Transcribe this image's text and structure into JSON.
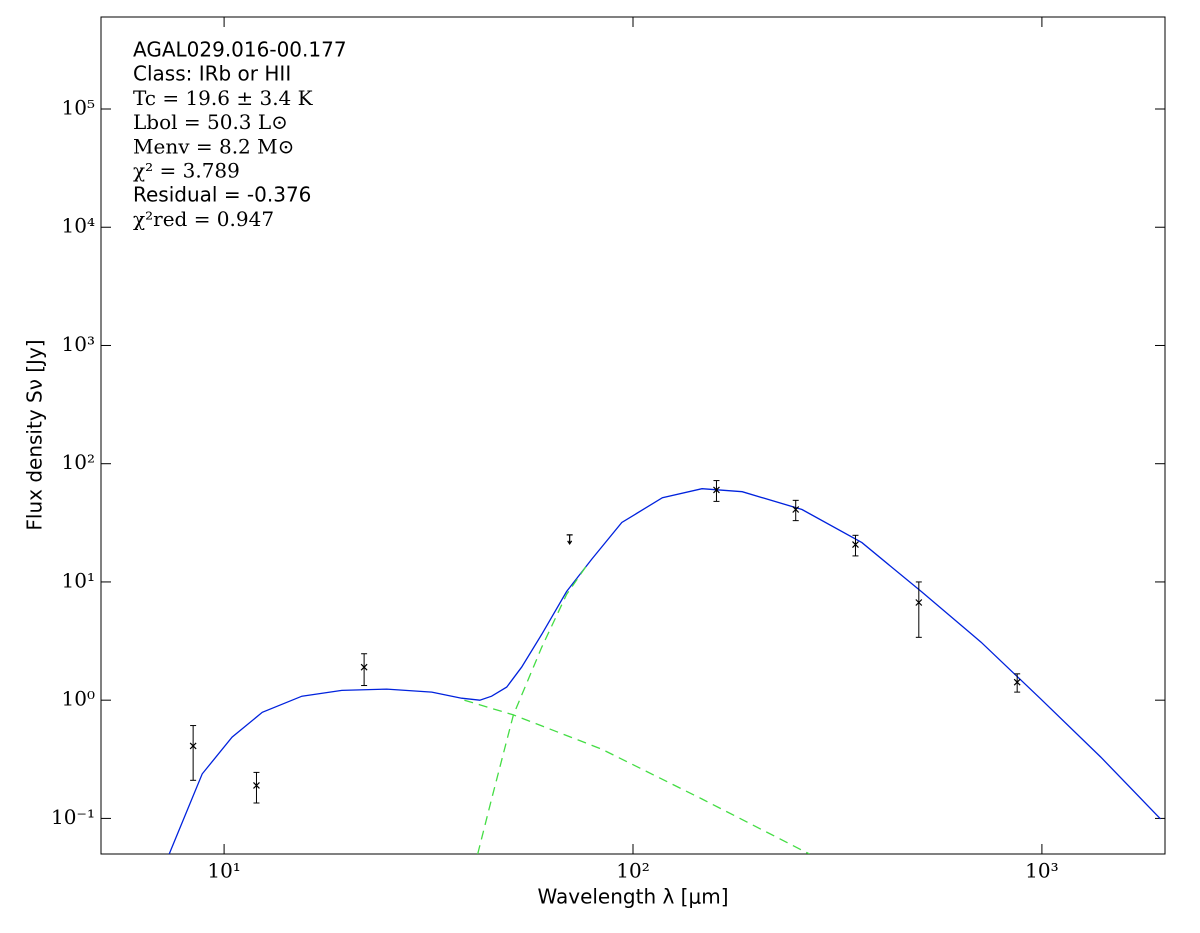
{
  "chart_data": {
    "type": "scatter",
    "x_label": "Wavelength λ [μm]",
    "y_label": "Flux density Sν [Jy]",
    "log_x": true,
    "log_y": true,
    "xlim": [
      5,
      2000
    ],
    "ylim": [
      0.05,
      600000
    ],
    "xticks": [
      {
        "value": 10,
        "label": "10¹"
      },
      {
        "value": 100,
        "label": "10²"
      },
      {
        "value": 1000,
        "label": "10³"
      }
    ],
    "yticks": [
      {
        "value": 0.1,
        "label": "10⁻¹"
      },
      {
        "value": 1,
        "label": "10⁰"
      },
      {
        "value": 10,
        "label": "10¹"
      },
      {
        "value": 100,
        "label": "10²"
      },
      {
        "value": 1000,
        "label": "10³"
      },
      {
        "value": 10000,
        "label": "10⁴"
      },
      {
        "value": 100000,
        "label": "10⁵"
      }
    ],
    "annotations": [
      {
        "text": "AGAL029.016-00.177",
        "math": false
      },
      {
        "text": "Class: IRb or HII",
        "math": false
      },
      {
        "text": "Tc = 19.6 ± 3.4 K",
        "math": true
      },
      {
        "text": "Lbol = 50.3 L⊙",
        "math": true
      },
      {
        "text": "Menv = 8.2 M⊙",
        "math": true
      },
      {
        "text": "χ² = 3.789",
        "math": true
      },
      {
        "text": "Residual = -0.376",
        "math": false
      },
      {
        "text": "χ²red = 0.947",
        "math": true
      }
    ],
    "points": {
      "color": "#000000",
      "x": [
        8.4,
        12,
        22,
        160,
        250,
        350,
        500,
        870
      ],
      "values": [
        0.41,
        0.19,
        1.9,
        60,
        41,
        20.7,
        6.7,
        1.42
      ],
      "errors": [
        0.2,
        0.055,
        0.57,
        12,
        8,
        4.1,
        3.3,
        0.25
      ]
    },
    "upper_limits": {
      "color": "#000000",
      "x": [
        70
      ],
      "values": [
        25
      ]
    },
    "curves": [
      {
        "color": "#0022dd",
        "dashed": false,
        "x": [
          7.34,
          8.84,
          10.46,
          12.4,
          15.5,
          19.4,
          25,
          32.2,
          38.1,
          42.2,
          45.1,
          49.1,
          53.4,
          59.8,
          68.8,
          79.2,
          93.9,
          118,
          147.5,
          185,
          259,
          363,
          507,
          710,
          995,
          1393,
          1950
        ],
        "values": [
          0.05,
          0.238,
          0.487,
          0.79,
          1.08,
          1.21,
          1.24,
          1.17,
          1.04,
          1.0,
          1.08,
          1.29,
          1.9,
          3.6,
          8.3,
          15.5,
          31.8,
          51.6,
          61.5,
          58,
          41,
          21.5,
          8.3,
          3.09,
          1.02,
          0.33,
          0.099
        ]
      },
      {
        "color": "#44dd44",
        "dashed": true,
        "x": [
          38.7,
          51,
          83.8,
          147.5,
          270
        ],
        "values": [
          1.0,
          0.75,
          0.386,
          0.146,
          0.05
        ]
      },
      {
        "color": "#44dd44",
        "dashed": true,
        "x": [
          41.7,
          45.1,
          51,
          59.8,
          68.8,
          77.3
        ],
        "values": [
          0.05,
          0.146,
          0.75,
          2.8,
          7.85,
          14
        ]
      }
    ]
  }
}
